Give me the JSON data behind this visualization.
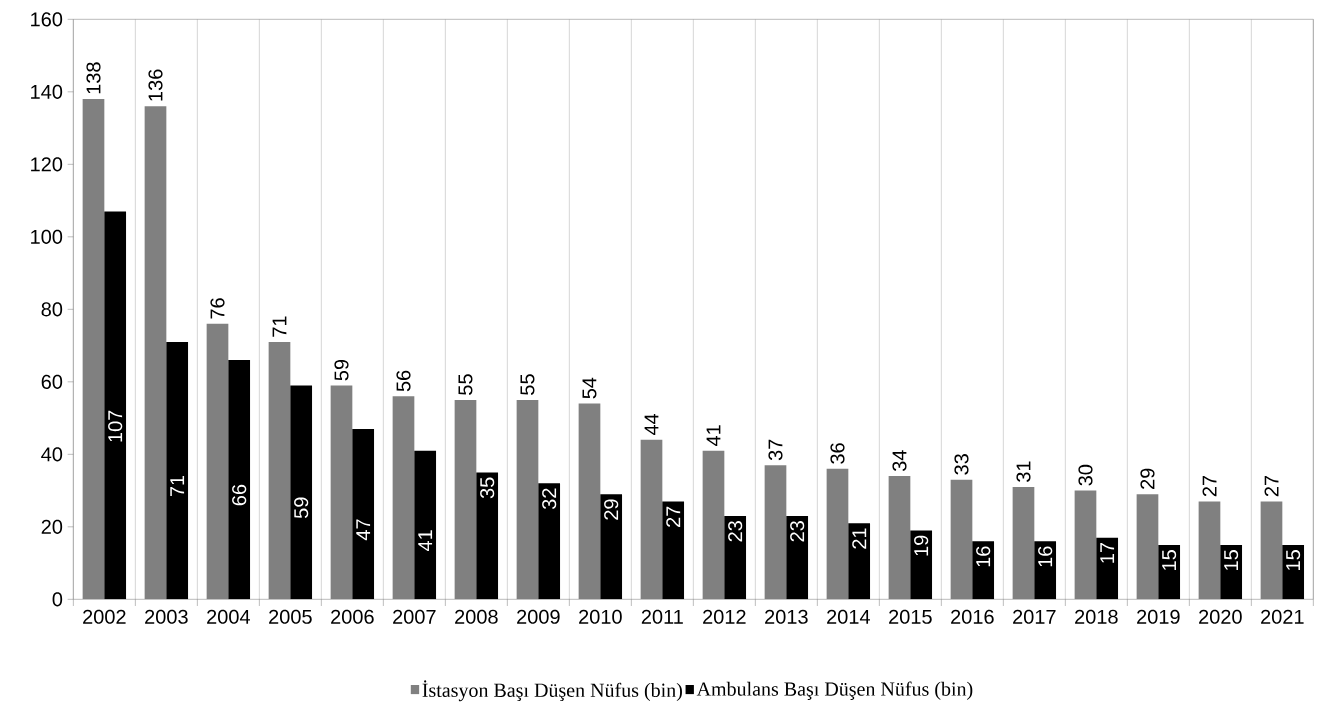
{
  "chart_data": {
    "type": "bar",
    "categories": [
      "2002",
      "2003",
      "2004",
      "2005",
      "2006",
      "2007",
      "2008",
      "2009",
      "2010",
      "2011",
      "2012",
      "2013",
      "2014",
      "2015",
      "2016",
      "2017",
      "2018",
      "2019",
      "2020",
      "2021"
    ],
    "series": [
      {
        "name": "İstasyon Başı Düşen Nüfus (bin)",
        "color": "#808080",
        "values": [
          138,
          136,
          76,
          71,
          59,
          56,
          55,
          55,
          54,
          44,
          41,
          37,
          36,
          34,
          33,
          31,
          30,
          29,
          27,
          27
        ]
      },
      {
        "name": "Ambulans Başı Düşen Nüfus (bin)",
        "color": "#000000",
        "values": [
          107,
          71,
          66,
          59,
          47,
          41,
          35,
          32,
          29,
          27,
          23,
          23,
          21,
          19,
          16,
          16,
          17,
          15,
          15,
          15
        ]
      }
    ],
    "ylim": [
      0,
      160
    ],
    "yticks": [
      0,
      20,
      40,
      60,
      80,
      100,
      120,
      140,
      160
    ],
    "grid": "x",
    "legend": "bottom",
    "data_labels": true
  }
}
